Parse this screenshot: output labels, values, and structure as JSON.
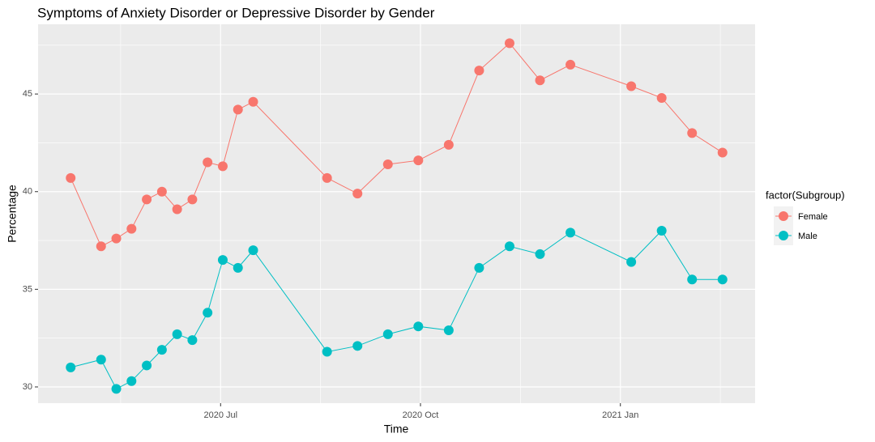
{
  "chart_data": {
    "type": "line",
    "title": "Symptoms of Anxiety Disorder or Depressive Disorder by Gender",
    "x_label": "Time",
    "y_label": "Percentage",
    "legend_title": "factor(Subgroup)",
    "legend": "right",
    "x": [
      "2020-04-23",
      "2020-05-07",
      "2020-05-14",
      "2020-05-21",
      "2020-05-28",
      "2020-06-04",
      "2020-06-11",
      "2020-06-18",
      "2020-06-25",
      "2020-07-02",
      "2020-07-09",
      "2020-07-16",
      "2020-08-19",
      "2020-09-02",
      "2020-09-16",
      "2020-09-30",
      "2020-10-14",
      "2020-10-28",
      "2020-11-11",
      "2020-11-25",
      "2020-12-09",
      "2021-01-06",
      "2021-01-20",
      "2021-02-03",
      "2021-02-17"
    ],
    "series": [
      {
        "name": "Female",
        "color": "#F8766D",
        "values": [
          40.7,
          37.2,
          37.6,
          38.1,
          39.6,
          40.0,
          39.1,
          39.6,
          41.5,
          41.3,
          44.2,
          44.6,
          40.7,
          39.9,
          41.4,
          41.6,
          42.4,
          46.2,
          47.6,
          45.7,
          46.5,
          45.4,
          44.8,
          43.0,
          42.0
        ]
      },
      {
        "name": "Male",
        "color": "#00BFC4",
        "values": [
          31.0,
          31.4,
          29.9,
          30.3,
          31.1,
          31.9,
          32.7,
          32.4,
          33.8,
          36.5,
          36.1,
          37.0,
          31.8,
          32.1,
          32.7,
          33.1,
          32.9,
          36.1,
          37.2,
          36.8,
          37.9,
          36.4,
          38.0,
          35.5,
          35.5
        ]
      }
    ],
    "xlim": [
      "2020-04-08",
      "2021-03-04"
    ],
    "xticks": [
      {
        "value": "2020-07-01",
        "label": "2020 Jul"
      },
      {
        "value": "2020-10-01",
        "label": "2020 Oct"
      },
      {
        "value": "2021-01-01",
        "label": "2021 Jan"
      }
    ],
    "ylim": [
      29.17,
      48.57
    ],
    "yticks": [
      30,
      35,
      40,
      45
    ],
    "grid": true
  }
}
